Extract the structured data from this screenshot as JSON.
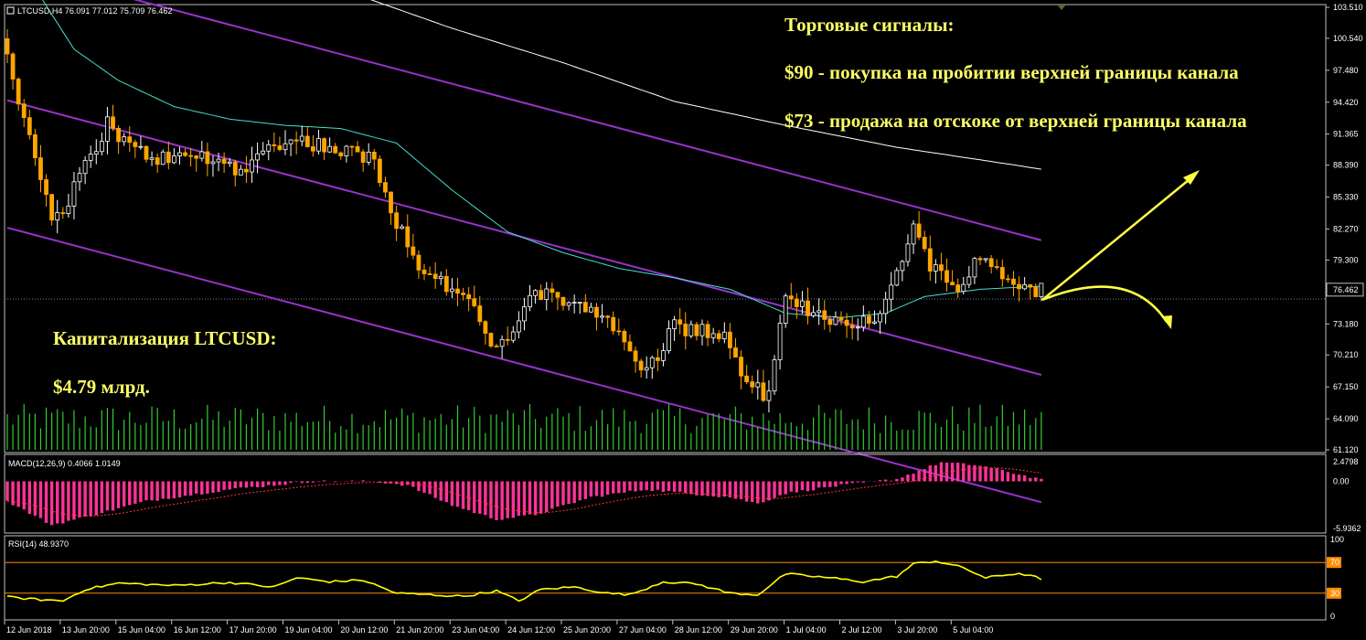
{
  "chart_data": {
    "type": "candlestick",
    "symbol_header": "LTCUSD,H4  76.091 77.012 75.709 76.462",
    "current_price_label": "76.462",
    "current_price": 76.462,
    "price_axis_labels": [
      "103.510",
      "100.540",
      "97.480",
      "94.420",
      "91.365",
      "88.390",
      "85.330",
      "82.270",
      "79.300",
      "76.462",
      "73.180",
      "70.210",
      "67.150",
      "64.090",
      "61.120"
    ],
    "price_ylim": [
      61.12,
      103.51
    ],
    "x_labels": [
      "12 Jun 2018",
      "13 Jun 20:00",
      "15 Jun 04:00",
      "16 Jun 12:00",
      "17 Jun 20:00",
      "19 Jun 04:00",
      "20 Jun 12:00",
      "21 Jun 20:00",
      "23 Jun 04:00",
      "24 Jun 12:00",
      "25 Jun 20:00",
      "27 Jun 04:00",
      "28 Jun 12:00",
      "29 Jun 20:00",
      "1 Jul 04:00",
      "2 Jul 12:00",
      "3 Jul 20:00",
      "5 Jul 04:00"
    ],
    "candle_colors": {
      "up": "#ffffff",
      "down": "#ffa500"
    },
    "close_anchors": [
      [
        0,
        99.0
      ],
      [
        3,
        93.0
      ],
      [
        8,
        83.5
      ],
      [
        11,
        85.0
      ],
      [
        18,
        92.5
      ],
      [
        22,
        90.0
      ],
      [
        28,
        89.0
      ],
      [
        35,
        89.2
      ],
      [
        42,
        88.0
      ],
      [
        50,
        91.0
      ],
      [
        55,
        90.5
      ],
      [
        62,
        89.5
      ],
      [
        66,
        89.0
      ],
      [
        70,
        83.0
      ],
      [
        75,
        78.0
      ],
      [
        82,
        76.0
      ],
      [
        88,
        70.5
      ],
      [
        95,
        76.0
      ],
      [
        100,
        75.5
      ],
      [
        105,
        75.0
      ],
      [
        110,
        72.0
      ],
      [
        115,
        68.5
      ],
      [
        120,
        73.0
      ],
      [
        125,
        72.5
      ],
      [
        130,
        71.5
      ],
      [
        133,
        67.0
      ],
      [
        137,
        66.5
      ],
      [
        140,
        75.5
      ],
      [
        144,
        74.5
      ],
      [
        150,
        73.5
      ],
      [
        157,
        73.5
      ],
      [
        160,
        78.5
      ],
      [
        163,
        82.5
      ],
      [
        166,
        79.0
      ],
      [
        170,
        76.5
      ],
      [
        175,
        79.5
      ],
      [
        180,
        77.5
      ],
      [
        185,
        76.462
      ]
    ],
    "resistance_line": {
      "points": [
        [
          0,
          107.5
        ],
        [
          186,
          81.2
        ]
      ],
      "color": "#9932cc"
    },
    "middle_line": {
      "points": [
        [
          0,
          94.6
        ],
        [
          186,
          68.3
        ]
      ],
      "color": "#9932cc"
    },
    "support_line": {
      "points": [
        [
          0,
          82.4
        ],
        [
          186,
          56.1
        ]
      ],
      "color": "#9932cc"
    },
    "ma_fast": {
      "color": "#40e0d0",
      "points": [
        [
          6,
          104.5
        ],
        [
          12,
          99.5
        ],
        [
          20,
          96.5
        ],
        [
          30,
          94.0
        ],
        [
          40,
          92.8
        ],
        [
          50,
          92.2
        ],
        [
          60,
          91.9
        ],
        [
          70,
          90.5
        ],
        [
          80,
          86.0
        ],
        [
          90,
          82.0
        ],
        [
          100,
          80.0
        ],
        [
          110,
          78.5
        ],
        [
          120,
          77.6
        ],
        [
          130,
          76.5
        ],
        [
          140,
          74.2
        ],
        [
          150,
          73.8
        ],
        [
          158,
          74.2
        ],
        [
          165,
          75.8
        ],
        [
          175,
          76.5
        ],
        [
          186,
          76.8
        ]
      ]
    },
    "ma_slow": {
      "color": "#ffffff",
      "points": [
        [
          64,
          104.5
        ],
        [
          80,
          101.5
        ],
        [
          100,
          98.2
        ],
        [
          120,
          94.5
        ],
        [
          140,
          92.2
        ],
        [
          160,
          90.1
        ],
        [
          180,
          88.5
        ],
        [
          186,
          88.0
        ]
      ]
    },
    "volume_series": {
      "color": "#33cc33",
      "bars": 187
    },
    "signals": {
      "title": "Торговые сигналы:",
      "buy": "$90 - покупка на пробитии верхней границы канала",
      "sell": "$73 - продажа на отскоке от верхней границы канала"
    },
    "capitalization": {
      "label": "Капитализация LTCUSD:",
      "value": "$4.79 млрд."
    },
    "macd": {
      "header": "MACD(12,26,9) 0.4066 1.0149",
      "axis_labels": [
        "2.4798",
        "0.00",
        "-5.9362"
      ],
      "ylim": [
        -5.9362,
        2.4798
      ],
      "histogram_color": "#ff3399",
      "signal_color": "#ff3333",
      "anchors": [
        [
          0,
          -2.5
        ],
        [
          8,
          -5.5
        ],
        [
          14,
          -4.5
        ],
        [
          25,
          -2.5
        ],
        [
          40,
          -1.0
        ],
        [
          55,
          0.0
        ],
        [
          66,
          0.0
        ],
        [
          72,
          -0.5
        ],
        [
          80,
          -3.0
        ],
        [
          88,
          -4.8
        ],
        [
          95,
          -4.2
        ],
        [
          105,
          -2.0
        ],
        [
          115,
          -1.0
        ],
        [
          122,
          -1.5
        ],
        [
          130,
          -2.0
        ],
        [
          135,
          -2.8
        ],
        [
          140,
          -1.5
        ],
        [
          150,
          -0.5
        ],
        [
          160,
          0.3
        ],
        [
          168,
          2.4
        ],
        [
          175,
          2.0
        ],
        [
          185,
          0.4066
        ]
      ]
    },
    "rsi": {
      "header": "RSI(14) 48.9370",
      "axis_labels": [
        "100",
        "70",
        "30",
        "0"
      ],
      "levels": [
        70,
        30
      ],
      "level_color": "#ff8c00",
      "line_color": "#ffff00",
      "anchors": [
        [
          0,
          25
        ],
        [
          5,
          22
        ],
        [
          10,
          20
        ],
        [
          14,
          35
        ],
        [
          20,
          43
        ],
        [
          30,
          40
        ],
        [
          40,
          44
        ],
        [
          48,
          38
        ],
        [
          52,
          50
        ],
        [
          58,
          45
        ],
        [
          64,
          47
        ],
        [
          70,
          30
        ],
        [
          76,
          28
        ],
        [
          82,
          26
        ],
        [
          88,
          33
        ],
        [
          92,
          20
        ],
        [
          96,
          35
        ],
        [
          102,
          38
        ],
        [
          108,
          30
        ],
        [
          112,
          28
        ],
        [
          118,
          45
        ],
        [
          124,
          42
        ],
        [
          130,
          30
        ],
        [
          135,
          28
        ],
        [
          140,
          55
        ],
        [
          148,
          50
        ],
        [
          154,
          45
        ],
        [
          160,
          52
        ],
        [
          163,
          68
        ],
        [
          167,
          72
        ],
        [
          172,
          63
        ],
        [
          176,
          50
        ],
        [
          182,
          56
        ],
        [
          186,
          48.937
        ]
      ]
    }
  }
}
